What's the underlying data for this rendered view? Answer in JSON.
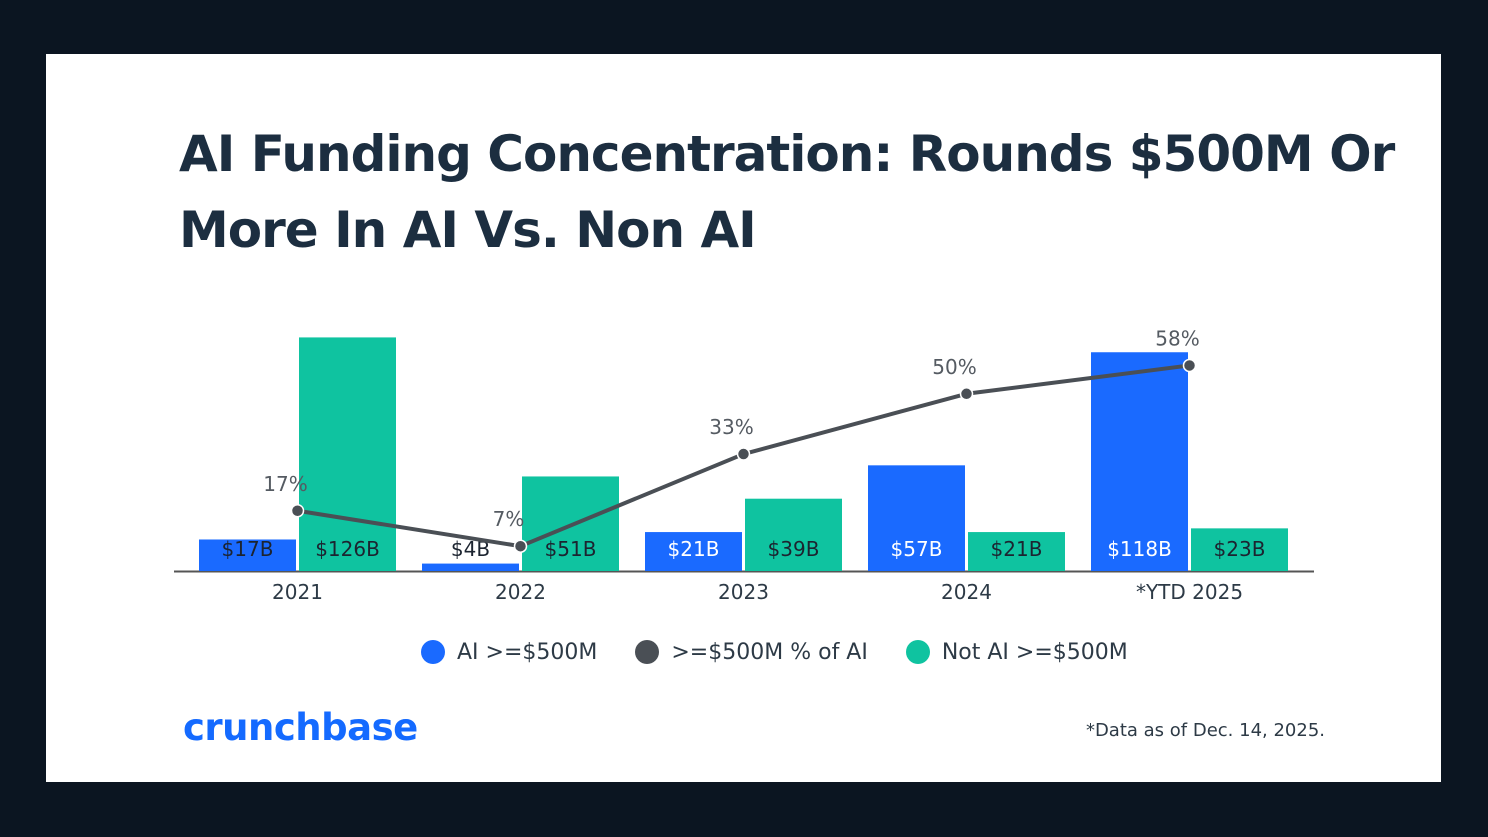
{
  "title": "AI Funding Concentration: Rounds $500M Or More In AI Vs. Non AI",
  "logo_text": "crunchbase",
  "footnote": "*Data as of Dec. 14, 2025.",
  "colors": {
    "ai": "#1a6aff",
    "not_ai": "#0fc3a0",
    "line": "#4a4f55",
    "axis": "#555555",
    "logo": "#146aff"
  },
  "chart_data": {
    "type": "bar",
    "categories": [
      "2021",
      "2022",
      "2023",
      "2024",
      "*YTD 2025"
    ],
    "ylim": [
      0,
      130
    ],
    "series": [
      {
        "name": "AI >=$500M",
        "values": [
          17,
          4,
          21,
          57,
          118
        ],
        "labels": [
          "$17B",
          "$4B",
          "$21B",
          "$57B",
          "$118B"
        ]
      },
      {
        "name": "Not AI >=$500M",
        "values": [
          126,
          51,
          39,
          21,
          23
        ],
        "labels": [
          "$126B",
          "$51B",
          "$39B",
          "$21B",
          "$23B"
        ]
      }
    ],
    "line_series": {
      "name": ">=$500M % of AI",
      "values": [
        17,
        7,
        33,
        50,
        58
      ],
      "labels": [
        "17%",
        "7%",
        "33%",
        "50%",
        "58%"
      ],
      "ylim": [
        0,
        68
      ]
    },
    "legend_order": [
      "AI >=$500M",
      ">=$500M % of AI",
      "Not AI >=$500M"
    ],
    "legend_position": "bottom",
    "grid": false
  }
}
